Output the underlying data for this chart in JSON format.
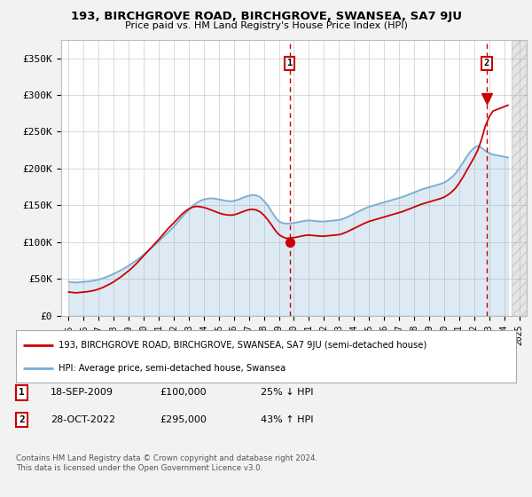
{
  "title": "193, BIRCHGROVE ROAD, BIRCHGROVE, SWANSEA, SA7 9JU",
  "subtitle": "Price paid vs. HM Land Registry's House Price Index (HPI)",
  "ylabel_ticks": [
    "£0",
    "£50K",
    "£100K",
    "£150K",
    "£200K",
    "£250K",
    "£300K",
    "£350K"
  ],
  "ytick_values": [
    0,
    50000,
    100000,
    150000,
    200000,
    250000,
    300000,
    350000
  ],
  "ylim": [
    0,
    375000
  ],
  "xlim_start": 1994.5,
  "xlim_end": 2025.5,
  "hpi_color": "#7aaed6",
  "price_color": "#cc0000",
  "fig_bg": "#f2f2f2",
  "plot_bg": "#ffffff",
  "grid_color": "#cccccc",
  "sale1_date": 2009.72,
  "sale1_price": 100000,
  "sale1_label": "1",
  "sale2_date": 2022.83,
  "sale2_price": 295000,
  "sale2_label": "2",
  "legend_line1": "193, BIRCHGROVE ROAD, BIRCHGROVE, SWANSEA, SA7 9JU (semi-detached house)",
  "legend_line2": "HPI: Average price, semi-detached house, Swansea",
  "copyright": "Contains HM Land Registry data © Crown copyright and database right 2024.\nThis data is licensed under the Open Government Licence v3.0.",
  "xtick_years": [
    1995,
    1996,
    1997,
    1998,
    1999,
    2000,
    2001,
    2002,
    2003,
    2004,
    2005,
    2006,
    2007,
    2008,
    2009,
    2010,
    2011,
    2012,
    2013,
    2014,
    2015,
    2016,
    2017,
    2018,
    2019,
    2020,
    2021,
    2022,
    2023,
    2024,
    2025
  ],
  "hpi_years": [
    1995,
    1995.25,
    1995.5,
    1995.75,
    1996,
    1996.25,
    1996.5,
    1996.75,
    1997,
    1997.25,
    1997.5,
    1997.75,
    1998,
    1998.25,
    1998.5,
    1998.75,
    1999,
    1999.25,
    1999.5,
    1999.75,
    2000,
    2000.25,
    2000.5,
    2000.75,
    2001,
    2001.25,
    2001.5,
    2001.75,
    2002,
    2002.25,
    2002.5,
    2002.75,
    2003,
    2003.25,
    2003.5,
    2003.75,
    2004,
    2004.25,
    2004.5,
    2004.75,
    2005,
    2005.25,
    2005.5,
    2005.75,
    2006,
    2006.25,
    2006.5,
    2006.75,
    2007,
    2007.25,
    2007.5,
    2007.75,
    2008,
    2008.25,
    2008.5,
    2008.75,
    2009,
    2009.25,
    2009.5,
    2009.75,
    2010,
    2010.25,
    2010.5,
    2010.75,
    2011,
    2011.25,
    2011.5,
    2011.75,
    2012,
    2012.25,
    2012.5,
    2012.75,
    2013,
    2013.25,
    2013.5,
    2013.75,
    2014,
    2014.25,
    2014.5,
    2014.75,
    2015,
    2015.25,
    2015.5,
    2015.75,
    2016,
    2016.25,
    2016.5,
    2016.75,
    2017,
    2017.25,
    2017.5,
    2017.75,
    2018,
    2018.25,
    2018.5,
    2018.75,
    2019,
    2019.25,
    2019.5,
    2019.75,
    2020,
    2020.25,
    2020.5,
    2020.75,
    2021,
    2021.25,
    2021.5,
    2021.75,
    2022,
    2022.25,
    2022.5,
    2022.75,
    2023,
    2023.25,
    2023.5,
    2023.75,
    2024,
    2024.25
  ],
  "hpi_values": [
    46000,
    45500,
    45000,
    45500,
    46000,
    46500,
    47000,
    47800,
    49000,
    50500,
    52500,
    54500,
    57000,
    59500,
    62000,
    65000,
    68000,
    71500,
    75000,
    79000,
    83000,
    87500,
    92000,
    96500,
    101000,
    106000,
    111000,
    116000,
    121000,
    127000,
    133000,
    139000,
    144000,
    149000,
    153000,
    156000,
    158000,
    159000,
    159500,
    159000,
    158000,
    157000,
    156000,
    155500,
    156000,
    157500,
    159500,
    161500,
    163000,
    164000,
    163500,
    161000,
    156000,
    150000,
    142000,
    134000,
    128000,
    126000,
    125000,
    125500,
    126000,
    127000,
    128000,
    129000,
    129500,
    129000,
    128500,
    128000,
    128000,
    128500,
    129000,
    129500,
    130000,
    131500,
    133500,
    136000,
    138500,
    141000,
    143500,
    146000,
    148000,
    149500,
    151000,
    152500,
    154000,
    155500,
    157000,
    158500,
    160000,
    161500,
    163500,
    165500,
    167500,
    169500,
    171500,
    173000,
    174500,
    176000,
    177500,
    179000,
    181000,
    184000,
    188000,
    193000,
    200000,
    208000,
    216000,
    223000,
    228000,
    231000,
    228000,
    224000,
    221000,
    219000,
    218000,
    217000,
    216000,
    215000
  ],
  "price_years": [
    1995,
    1995.25,
    1995.5,
    1995.75,
    1996,
    1996.25,
    1996.5,
    1996.75,
    1997,
    1997.25,
    1997.5,
    1997.75,
    1998,
    1998.25,
    1998.5,
    1998.75,
    1999,
    1999.25,
    1999.5,
    1999.75,
    2000,
    2000.25,
    2000.5,
    2000.75,
    2001,
    2001.25,
    2001.5,
    2001.75,
    2002,
    2002.25,
    2002.5,
    2002.75,
    2003,
    2003.25,
    2003.5,
    2003.75,
    2004,
    2004.25,
    2004.5,
    2004.75,
    2005,
    2005.25,
    2005.5,
    2005.75,
    2006,
    2006.25,
    2006.5,
    2006.75,
    2007,
    2007.25,
    2007.5,
    2007.75,
    2008,
    2008.25,
    2008.5,
    2008.75,
    2009,
    2009.25,
    2009.5,
    2009.75,
    2010,
    2010.25,
    2010.5,
    2010.75,
    2011,
    2011.25,
    2011.5,
    2011.75,
    2012,
    2012.25,
    2012.5,
    2012.75,
    2013,
    2013.25,
    2013.5,
    2013.75,
    2014,
    2014.25,
    2014.5,
    2014.75,
    2015,
    2015.25,
    2015.5,
    2015.75,
    2016,
    2016.25,
    2016.5,
    2016.75,
    2017,
    2017.25,
    2017.5,
    2017.75,
    2018,
    2018.25,
    2018.5,
    2018.75,
    2019,
    2019.25,
    2019.5,
    2019.75,
    2020,
    2020.25,
    2020.5,
    2020.75,
    2021,
    2021.25,
    2021.5,
    2021.75,
    2022,
    2022.25,
    2022.5,
    2022.75,
    2023,
    2023.25,
    2023.5,
    2023.75,
    2024,
    2024.25
  ],
  "price_values": [
    32000,
    31500,
    31000,
    31500,
    32000,
    32500,
    33500,
    34500,
    36000,
    38000,
    40500,
    43000,
    46000,
    49500,
    53000,
    57000,
    61000,
    65500,
    70500,
    76000,
    81500,
    87000,
    92500,
    98000,
    103500,
    109500,
    115500,
    121000,
    126000,
    131500,
    137000,
    141500,
    145000,
    147500,
    148500,
    148000,
    147000,
    145500,
    143500,
    141500,
    139500,
    138000,
    137000,
    136500,
    137000,
    138500,
    140500,
    142500,
    144000,
    144500,
    143500,
    141000,
    136500,
    130500,
    123500,
    116000,
    110000,
    107000,
    105000,
    105500,
    106000,
    107000,
    108000,
    109000,
    109500,
    109000,
    108500,
    108000,
    108000,
    108500,
    109000,
    109500,
    110000,
    111500,
    113500,
    116000,
    118500,
    121000,
    123500,
    126000,
    128000,
    129500,
    131000,
    132500,
    134000,
    135500,
    137000,
    138500,
    140000,
    141500,
    143500,
    145500,
    147500,
    149500,
    151500,
    153000,
    154500,
    156000,
    157500,
    159000,
    161000,
    164000,
    168000,
    173000,
    180000,
    188000,
    197000,
    206000,
    215000,
    225000,
    240000,
    258000,
    270000,
    278000,
    280000,
    282000,
    284000,
    286000
  ]
}
